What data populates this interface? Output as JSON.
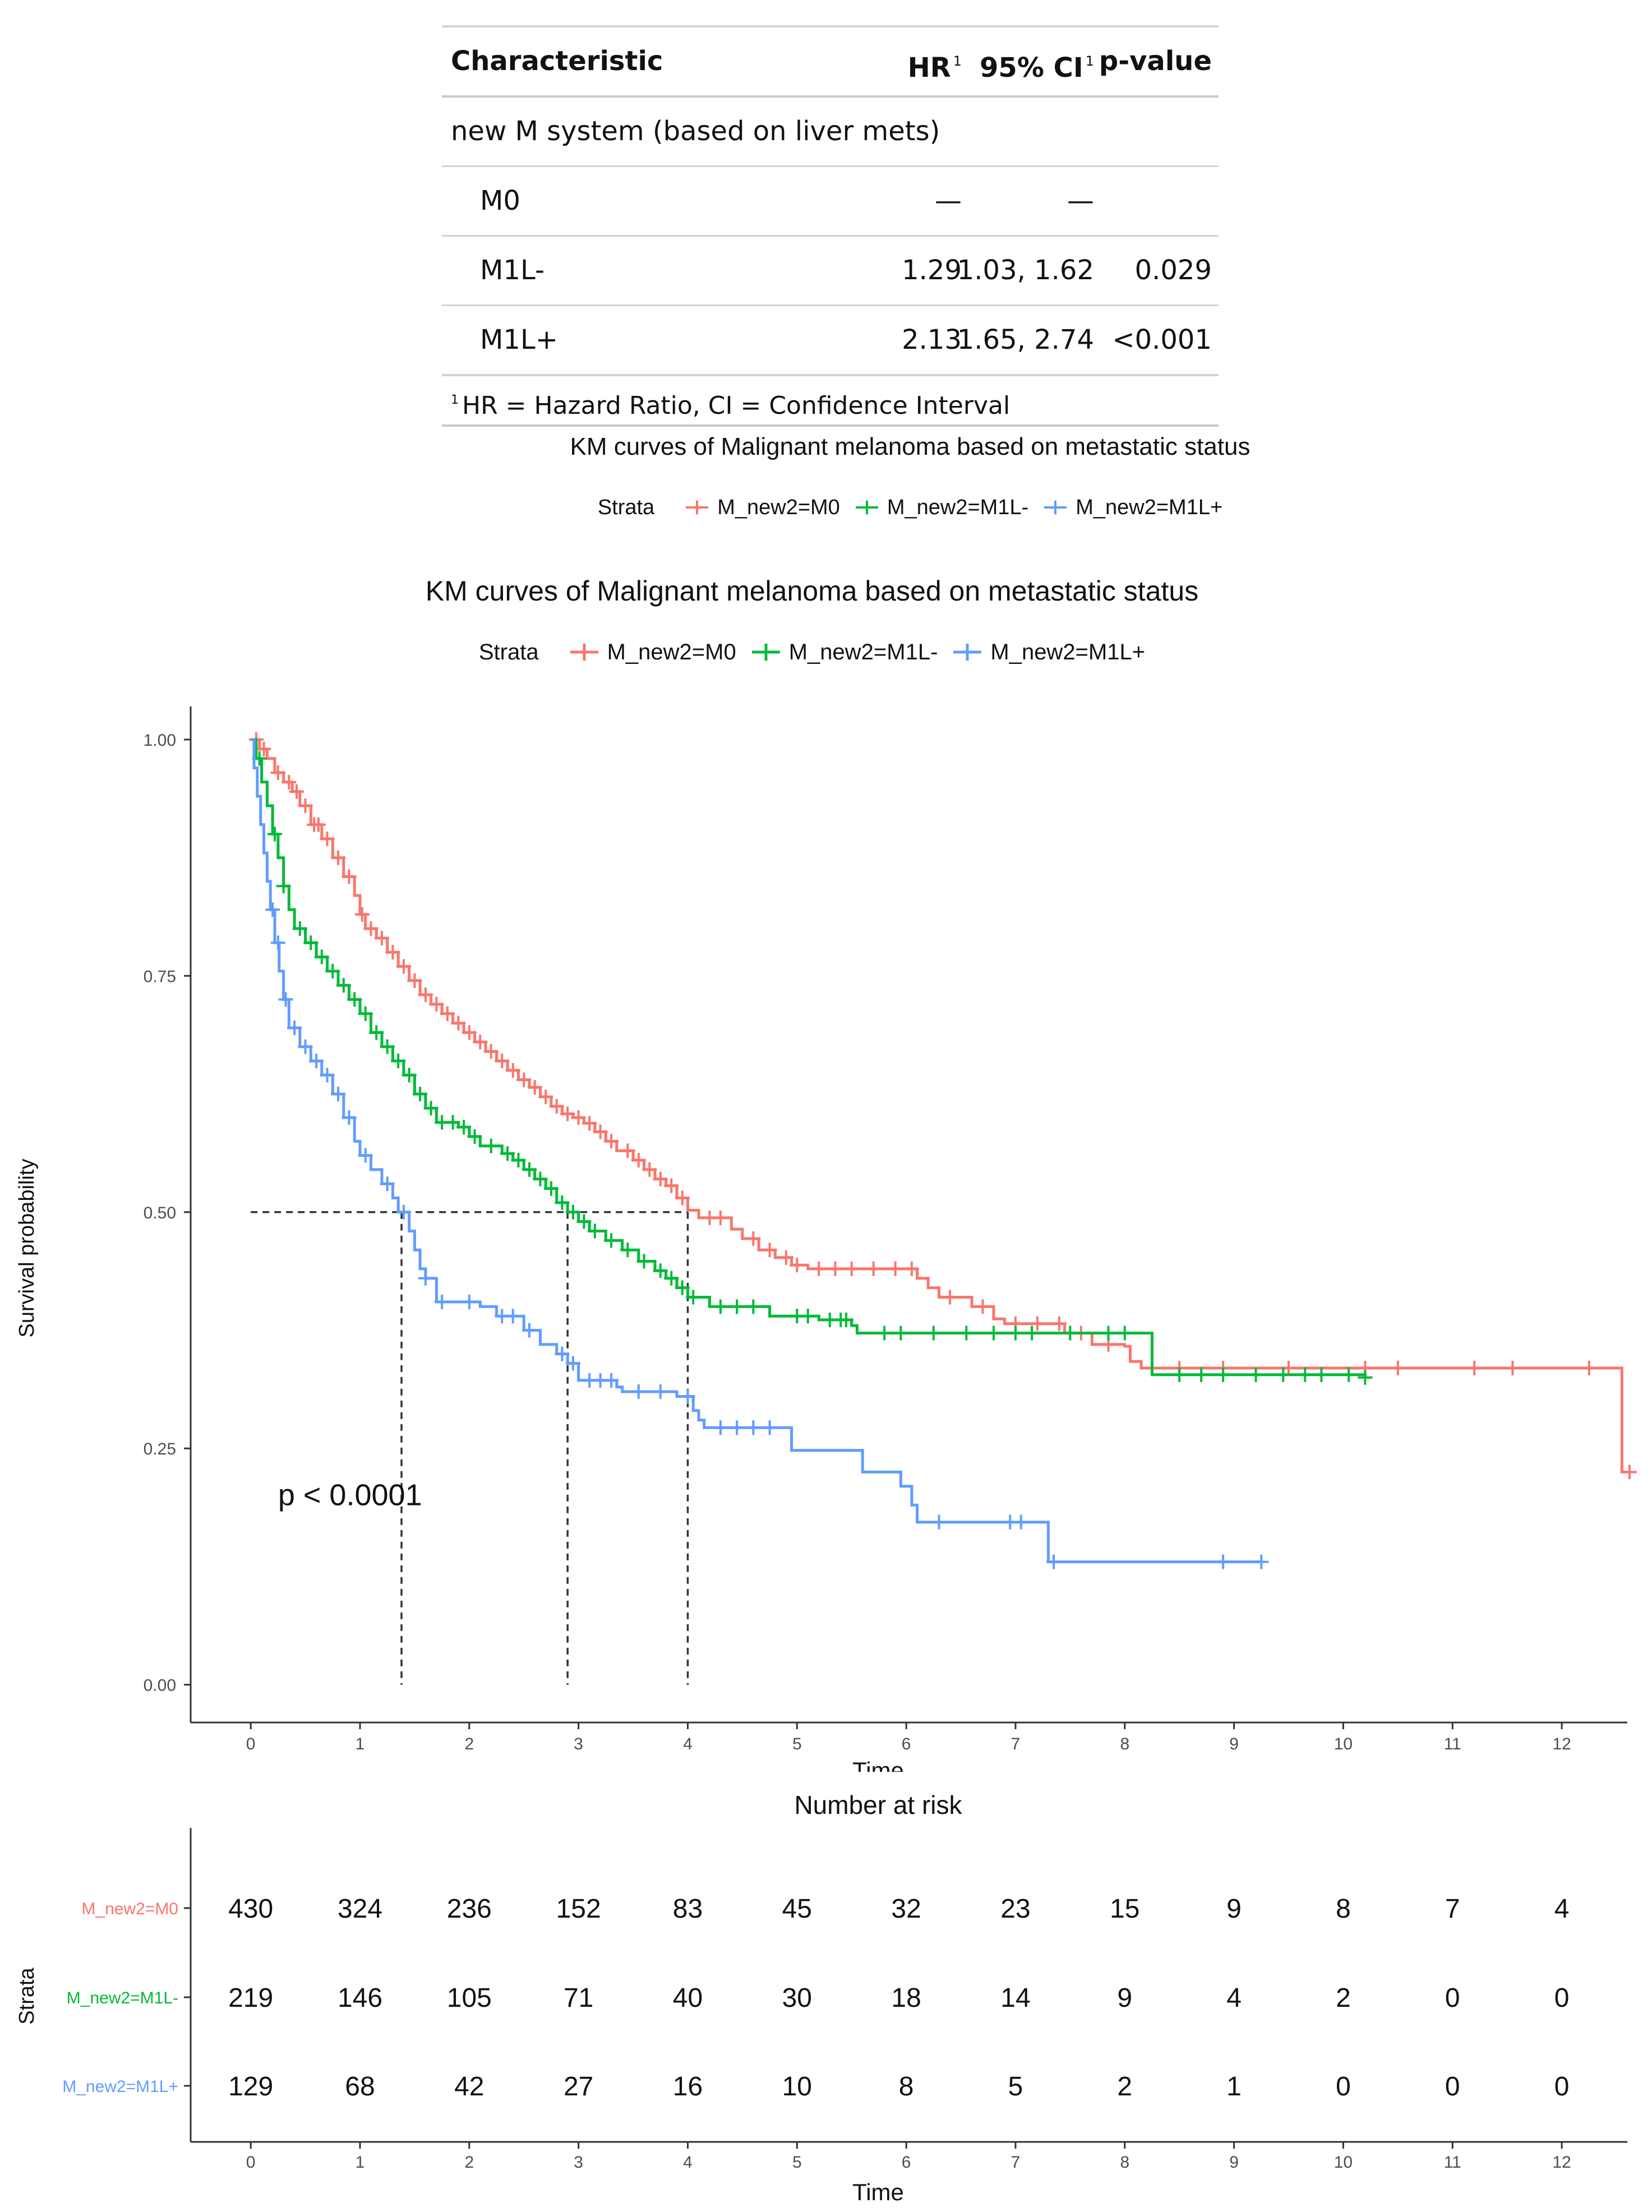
{
  "hr_table": {
    "headers": {
      "characteristic": "Characteristic",
      "hr": "HR",
      "ci": "95% CI",
      "p": "p-value",
      "footnote_mark": "1"
    },
    "group_label": "new M system (based on liver mets)",
    "rows": [
      {
        "label": "M0",
        "hr": "—",
        "ci": "—",
        "p": ""
      },
      {
        "label": "M1L-",
        "hr": "1.29",
        "ci": "1.03, 1.62",
        "p": "0.029"
      },
      {
        "label": "M1L+",
        "hr": "2.13",
        "ci": "1.65, 2.74",
        "p": "<0.001"
      }
    ],
    "footnote_mark": "1",
    "footnote": "HR = Hazard Ratio, CI = Confidence Interval"
  },
  "chart_titles": {
    "small": "KM curves of Malignant melanoma based on metastatic status",
    "main": "KM curves of Malignant melanoma based on metastatic status"
  },
  "legend": {
    "title": "Strata",
    "items": [
      {
        "label": "M_new2=M0",
        "color": "#F8766D"
      },
      {
        "label": "M_new2=M1L-",
        "color": "#00BA38"
      },
      {
        "label": "M_new2=M1L+",
        "color": "#619CFF"
      }
    ]
  },
  "chart_data": {
    "type": "line",
    "subtype": "kaplan-meier",
    "xlabel": "Time",
    "ylabel": "Survival probability",
    "xlim": [
      -0.55,
      12.6
    ],
    "ylim": [
      -0.04,
      1.035
    ],
    "x_ticks": [
      0,
      1,
      2,
      3,
      4,
      5,
      6,
      7,
      8,
      9,
      10,
      11,
      12
    ],
    "y_ticks": [
      0.0,
      0.25,
      0.5,
      0.75,
      1.0
    ],
    "y_tick_labels": [
      "0.00",
      "0.25",
      "0.50",
      "0.75",
      "1.00"
    ],
    "pvalue_text": "p < 0.0001",
    "pvalue_pos": [
      0.25,
      0.19
    ],
    "median_survival": [
      {
        "strata": "M_new2=M0",
        "time": 4.0
      },
      {
        "strata": "M_new2=M1L-",
        "time": 2.9
      },
      {
        "strata": "M_new2=M1L+",
        "time": 1.38
      }
    ],
    "series": [
      {
        "name": "M_new2=M0",
        "color": "#F8766D",
        "steps": [
          [
            0,
            1.0
          ],
          [
            0.08,
            0.99
          ],
          [
            0.15,
            0.98
          ],
          [
            0.22,
            0.965
          ],
          [
            0.3,
            0.955
          ],
          [
            0.38,
            0.945
          ],
          [
            0.45,
            0.93
          ],
          [
            0.55,
            0.91
          ],
          [
            0.65,
            0.895
          ],
          [
            0.75,
            0.875
          ],
          [
            0.85,
            0.855
          ],
          [
            0.95,
            0.835
          ],
          [
            1.0,
            0.815
          ],
          [
            1.05,
            0.8
          ],
          [
            1.15,
            0.79
          ],
          [
            1.25,
            0.775
          ],
          [
            1.35,
            0.76
          ],
          [
            1.45,
            0.745
          ],
          [
            1.55,
            0.73
          ],
          [
            1.65,
            0.72
          ],
          [
            1.75,
            0.71
          ],
          [
            1.85,
            0.7
          ],
          [
            1.95,
            0.69
          ],
          [
            2.05,
            0.68
          ],
          [
            2.15,
            0.67
          ],
          [
            2.25,
            0.66
          ],
          [
            2.35,
            0.65
          ],
          [
            2.45,
            0.64
          ],
          [
            2.55,
            0.632
          ],
          [
            2.65,
            0.622
          ],
          [
            2.75,
            0.612
          ],
          [
            2.85,
            0.604
          ],
          [
            2.95,
            0.6
          ],
          [
            3.05,
            0.594
          ],
          [
            3.15,
            0.585
          ],
          [
            3.25,
            0.575
          ],
          [
            3.35,
            0.565
          ],
          [
            3.5,
            0.555
          ],
          [
            3.6,
            0.545
          ],
          [
            3.7,
            0.535
          ],
          [
            3.8,
            0.528
          ],
          [
            3.9,
            0.515
          ],
          [
            4.0,
            0.502
          ],
          [
            4.1,
            0.494
          ],
          [
            4.4,
            0.482
          ],
          [
            4.5,
            0.472
          ],
          [
            4.65,
            0.46
          ],
          [
            4.8,
            0.452
          ],
          [
            4.95,
            0.444
          ],
          [
            5.1,
            0.44
          ],
          [
            6.1,
            0.43
          ],
          [
            6.2,
            0.42
          ],
          [
            6.3,
            0.41
          ],
          [
            6.6,
            0.4
          ],
          [
            6.8,
            0.387
          ],
          [
            6.9,
            0.382
          ],
          [
            7.45,
            0.372
          ],
          [
            7.7,
            0.36
          ],
          [
            8.0,
            0.358
          ],
          [
            8.05,
            0.342
          ],
          [
            8.15,
            0.335
          ],
          [
            12.55,
            0.225
          ],
          [
            12.6,
            0.225
          ]
        ],
        "censor_times": [
          0.05,
          0.12,
          0.25,
          0.35,
          0.42,
          0.5,
          0.58,
          0.62,
          0.7,
          0.8,
          0.9,
          1.02,
          1.1,
          1.2,
          1.3,
          1.4,
          1.5,
          1.6,
          1.7,
          1.8,
          1.9,
          2.0,
          2.1,
          2.2,
          2.3,
          2.4,
          2.5,
          2.6,
          2.7,
          2.8,
          2.9,
          3.0,
          3.1,
          3.2,
          3.3,
          3.45,
          3.55,
          3.65,
          3.75,
          3.85,
          3.95,
          4.2,
          4.3,
          4.6,
          4.75,
          4.9,
          5.0,
          5.2,
          5.35,
          5.5,
          5.7,
          5.9,
          6.05,
          6.4,
          6.7,
          7.0,
          7.2,
          7.4,
          7.6,
          7.85,
          8.25,
          8.5,
          8.9,
          9.5,
          10.2,
          10.5,
          11.2,
          11.55,
          12.25,
          12.62
        ]
      },
      {
        "name": "M_new2=M1L-",
        "color": "#00BA38",
        "steps": [
          [
            0,
            1.0
          ],
          [
            0.05,
            0.98
          ],
          [
            0.1,
            0.955
          ],
          [
            0.15,
            0.93
          ],
          [
            0.2,
            0.9
          ],
          [
            0.25,
            0.875
          ],
          [
            0.3,
            0.845
          ],
          [
            0.35,
            0.82
          ],
          [
            0.4,
            0.8
          ],
          [
            0.5,
            0.785
          ],
          [
            0.6,
            0.77
          ],
          [
            0.7,
            0.755
          ],
          [
            0.8,
            0.74
          ],
          [
            0.9,
            0.725
          ],
          [
            1.0,
            0.71
          ],
          [
            1.1,
            0.69
          ],
          [
            1.2,
            0.675
          ],
          [
            1.3,
            0.66
          ],
          [
            1.4,
            0.645
          ],
          [
            1.5,
            0.625
          ],
          [
            1.6,
            0.61
          ],
          [
            1.7,
            0.595
          ],
          [
            1.9,
            0.59
          ],
          [
            2.0,
            0.58
          ],
          [
            2.1,
            0.57
          ],
          [
            2.3,
            0.562
          ],
          [
            2.4,
            0.555
          ],
          [
            2.5,
            0.545
          ],
          [
            2.6,
            0.535
          ],
          [
            2.7,
            0.525
          ],
          [
            2.8,
            0.51
          ],
          [
            2.9,
            0.5
          ],
          [
            3.0,
            0.49
          ],
          [
            3.1,
            0.48
          ],
          [
            3.25,
            0.47
          ],
          [
            3.4,
            0.46
          ],
          [
            3.55,
            0.448
          ],
          [
            3.7,
            0.438
          ],
          [
            3.8,
            0.43
          ],
          [
            3.9,
            0.42
          ],
          [
            4.0,
            0.41
          ],
          [
            4.2,
            0.4
          ],
          [
            4.75,
            0.39
          ],
          [
            5.2,
            0.386
          ],
          [
            5.5,
            0.38
          ],
          [
            5.55,
            0.372
          ],
          [
            8.25,
            0.328
          ],
          [
            10.2,
            0.325
          ]
        ],
        "censor_times": [
          0.08,
          0.22,
          0.3,
          0.45,
          0.55,
          0.65,
          0.75,
          0.85,
          0.95,
          1.05,
          1.15,
          1.25,
          1.35,
          1.45,
          1.55,
          1.65,
          1.75,
          1.85,
          1.95,
          2.05,
          2.2,
          2.35,
          2.45,
          2.55,
          2.65,
          2.75,
          2.85,
          2.95,
          3.05,
          3.15,
          3.3,
          3.45,
          3.6,
          3.75,
          3.85,
          3.95,
          4.05,
          4.3,
          4.45,
          4.6,
          5.0,
          5.1,
          5.3,
          5.4,
          5.45,
          5.8,
          5.95,
          6.25,
          6.55,
          6.8,
          7.0,
          7.15,
          7.5,
          7.85,
          8.0,
          8.5,
          8.7,
          8.9,
          9.2,
          9.45,
          9.65,
          9.8,
          10.05,
          10.2
        ]
      },
      {
        "name": "M_new2=M1L+",
        "color": "#619CFF",
        "steps": [
          [
            0,
            1.0
          ],
          [
            0.03,
            0.97
          ],
          [
            0.06,
            0.94
          ],
          [
            0.09,
            0.91
          ],
          [
            0.12,
            0.88
          ],
          [
            0.15,
            0.85
          ],
          [
            0.18,
            0.82
          ],
          [
            0.22,
            0.785
          ],
          [
            0.26,
            0.755
          ],
          [
            0.3,
            0.725
          ],
          [
            0.35,
            0.695
          ],
          [
            0.45,
            0.675
          ],
          [
            0.55,
            0.66
          ],
          [
            0.65,
            0.645
          ],
          [
            0.75,
            0.625
          ],
          [
            0.85,
            0.6
          ],
          [
            0.95,
            0.575
          ],
          [
            1.0,
            0.56
          ],
          [
            1.1,
            0.545
          ],
          [
            1.2,
            0.53
          ],
          [
            1.3,
            0.515
          ],
          [
            1.35,
            0.5
          ],
          [
            1.45,
            0.48
          ],
          [
            1.5,
            0.46
          ],
          [
            1.55,
            0.44
          ],
          [
            1.6,
            0.43
          ],
          [
            1.7,
            0.405
          ],
          [
            2.1,
            0.4
          ],
          [
            2.25,
            0.39
          ],
          [
            2.5,
            0.375
          ],
          [
            2.65,
            0.36
          ],
          [
            2.8,
            0.35
          ],
          [
            2.9,
            0.34
          ],
          [
            3.0,
            0.322
          ],
          [
            3.35,
            0.315
          ],
          [
            3.4,
            0.31
          ],
          [
            3.9,
            0.305
          ],
          [
            4.05,
            0.29
          ],
          [
            4.1,
            0.28
          ],
          [
            4.15,
            0.272
          ],
          [
            4.7,
            0.272
          ],
          [
            4.95,
            0.248
          ],
          [
            5.6,
            0.225
          ],
          [
            5.95,
            0.21
          ],
          [
            6.05,
            0.19
          ],
          [
            6.1,
            0.172
          ],
          [
            7.3,
            0.13
          ],
          [
            9.25,
            0.13
          ]
        ],
        "censor_times": [
          0.2,
          0.25,
          0.32,
          0.4,
          0.5,
          0.6,
          0.7,
          0.8,
          0.9,
          1.05,
          1.25,
          1.4,
          1.6,
          1.75,
          2.0,
          2.3,
          2.4,
          2.55,
          2.85,
          2.95,
          3.1,
          3.2,
          3.3,
          3.55,
          3.75,
          4.0,
          4.3,
          4.45,
          4.6,
          4.75,
          6.3,
          6.95,
          7.05,
          7.35,
          8.9,
          9.25
        ]
      }
    ]
  },
  "risk_table": {
    "title": "Number at risk",
    "ylabel": "Strata",
    "xlabel": "Time",
    "times": [
      0,
      1,
      2,
      3,
      4,
      5,
      6,
      7,
      8,
      9,
      10,
      11,
      12
    ],
    "rows": [
      {
        "label": "M_new2=M0",
        "color": "#F8766D",
        "values": [
          430,
          324,
          236,
          152,
          83,
          45,
          32,
          23,
          15,
          9,
          8,
          7,
          4
        ]
      },
      {
        "label": "M_new2=M1L-",
        "color": "#00BA38",
        "values": [
          219,
          146,
          105,
          71,
          40,
          30,
          18,
          14,
          9,
          4,
          2,
          0,
          0
        ]
      },
      {
        "label": "M_new2=M1L+",
        "color": "#619CFF",
        "values": [
          129,
          68,
          42,
          27,
          16,
          10,
          8,
          5,
          2,
          1,
          0,
          0,
          0
        ]
      }
    ]
  }
}
